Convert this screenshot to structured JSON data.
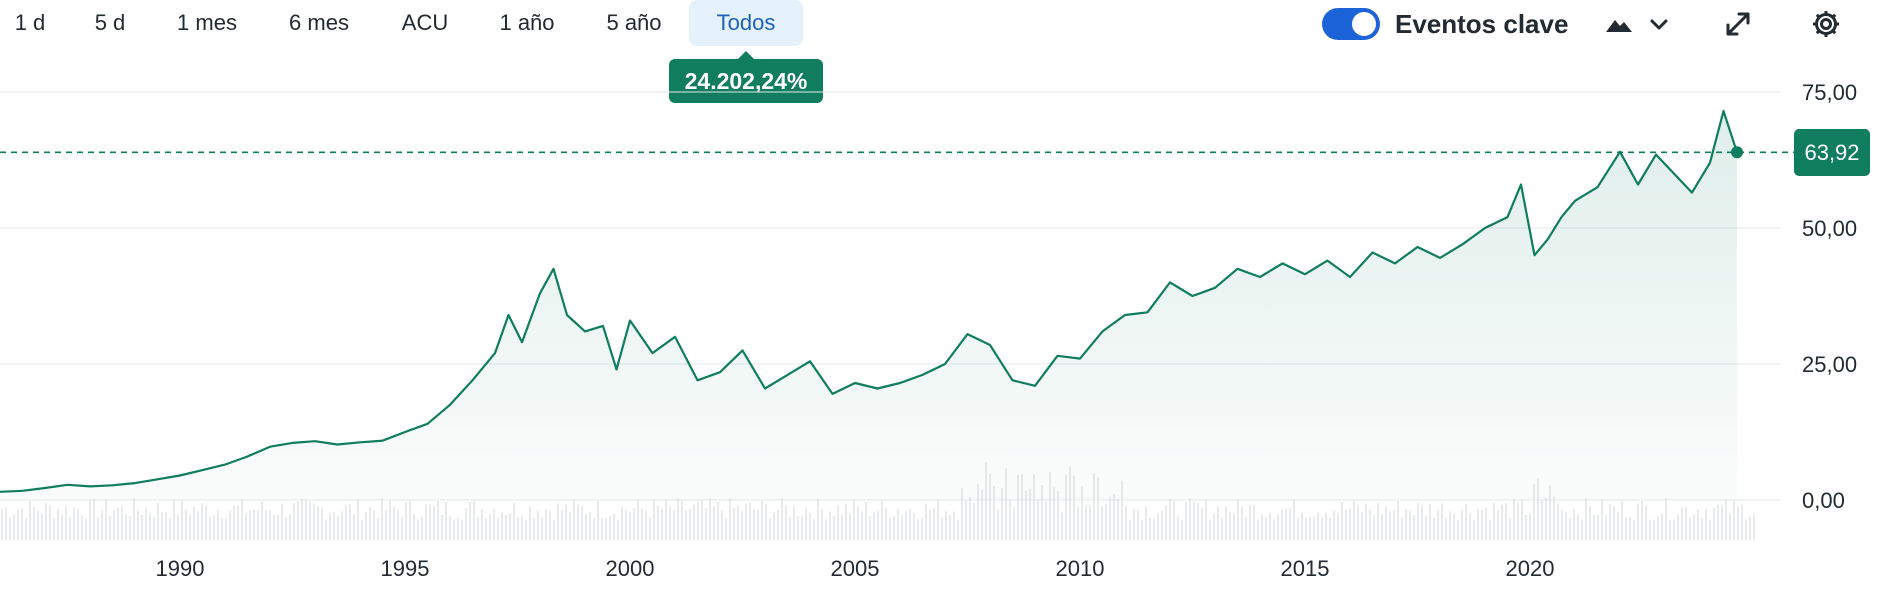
{
  "toolbar": {
    "ranges": [
      "1 d",
      "5 d",
      "1 mes",
      "6 mes",
      "ACU",
      "1 año",
      "5 año",
      "Todos"
    ],
    "active_range": "Todos",
    "toggle_label": "Eventos clave",
    "toggle_on": true,
    "icons": [
      "mountain-chart-icon",
      "chevron-down-icon",
      "expand-icon",
      "gear-icon"
    ]
  },
  "badges": {
    "percent_change": "24.202,24%",
    "current_price": "63,92"
  },
  "colors": {
    "line": "#0f7d5e",
    "active_tab_bg": "#e5f1fb",
    "active_tab_text": "#1d63bd",
    "toggle": "#1d63d8"
  },
  "chart_data": {
    "type": "area",
    "x_tick_labels": [
      "1990",
      "1995",
      "2000",
      "2005",
      "2010",
      "2015",
      "2020"
    ],
    "y_tick_labels": [
      "75,00",
      "50,00",
      "25,00",
      "0,00"
    ],
    "xlim": [
      1986,
      2025
    ],
    "ylim": [
      0,
      75
    ],
    "current_value": 63.92,
    "grid": true,
    "legend": "none",
    "series": [
      {
        "x": [
          1986.0,
          1986.5,
          1987.0,
          1987.5,
          1988.0,
          1988.5,
          1989.0,
          1989.5,
          1990.0,
          1990.5,
          1991.0,
          1991.5,
          1992.0,
          1992.5,
          1993.0,
          1993.5,
          1994.0,
          1994.5,
          1995.0,
          1995.5,
          1996.0,
          1996.5,
          1997.0,
          1997.3,
          1997.6,
          1998.0,
          1998.3,
          1998.6,
          1999.0,
          1999.4,
          1999.7,
          2000.0,
          2000.5,
          2001.0,
          2001.5,
          2002.0,
          2002.5,
          2003.0,
          2003.5,
          2004.0,
          2004.5,
          2005.0,
          2005.5,
          2006.0,
          2006.5,
          2007.0,
          2007.5,
          2008.0,
          2008.5,
          2009.0,
          2009.5,
          2010.0,
          2010.5,
          2011.0,
          2011.5,
          2012.0,
          2012.5,
          2013.0,
          2013.5,
          2014.0,
          2014.5,
          2015.0,
          2015.5,
          2016.0,
          2016.5,
          2017.0,
          2017.5,
          2018.0,
          2018.5,
          2019.0,
          2019.5,
          2019.8,
          2020.1,
          2020.4,
          2020.7,
          2021.0,
          2021.5,
          2022.0,
          2022.4,
          2022.8,
          2023.2,
          2023.6,
          2024.0,
          2024.3,
          2024.6
        ],
        "y": [
          1.5,
          1.7,
          2.2,
          2.8,
          2.5,
          2.7,
          3.1,
          3.8,
          4.5,
          5.5,
          6.5,
          8.0,
          9.8,
          10.5,
          10.8,
          10.2,
          10.6,
          10.9,
          12.5,
          14.0,
          17.5,
          22.0,
          27.0,
          34.0,
          29.0,
          38.0,
          42.5,
          34.0,
          31.0,
          32.0,
          24.0,
          33.0,
          27.0,
          30.0,
          22.0,
          23.5,
          27.5,
          20.5,
          23.0,
          25.5,
          19.5,
          21.5,
          20.5,
          21.5,
          23.0,
          25.0,
          30.5,
          28.5,
          22.0,
          21.0,
          26.5,
          26.0,
          31.0,
          34.0,
          34.5,
          40.0,
          37.5,
          39.0,
          42.5,
          41.0,
          43.5,
          41.5,
          44.0,
          41.0,
          45.5,
          43.5,
          46.5,
          44.5,
          47.0,
          50.0,
          52.0,
          58.0,
          45.0,
          48.0,
          52.0,
          55.0,
          57.5,
          64.0,
          58.0,
          63.5,
          60.0,
          56.5,
          62.0,
          71.5,
          63.92
        ]
      }
    ]
  }
}
